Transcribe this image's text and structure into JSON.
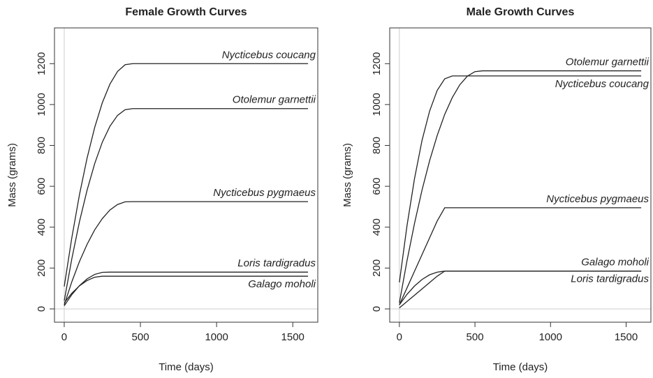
{
  "chart_data": [
    {
      "type": "line",
      "title": "Female Growth Curves",
      "x_label": "Time (days)",
      "y_label": "Mass (grams)",
      "x": [
        0,
        50,
        100,
        150,
        200,
        250,
        300,
        350,
        400,
        450,
        1600
      ],
      "series": [
        {
          "name": "Nycticebus coucang",
          "color": "#222222",
          "values": [
            110,
            349,
            559,
            738,
            888,
            1009,
            1100,
            1162,
            1195,
            1200,
            1200
          ]
        },
        {
          "name": "Otolemur garnettii",
          "color": "#222222",
          "values": [
            40,
            246,
            427,
            581,
            711,
            816,
            894,
            947,
            975,
            980,
            980
          ]
        },
        {
          "name": "Nycticebus pygmaeus",
          "color": "#222222",
          "values": [
            20,
            133,
            232,
            316,
            387,
            442,
            484,
            511,
            524,
            525,
            525
          ]
        },
        {
          "name": "Loris tardigradus",
          "color": "#222222",
          "values": [
            15,
            70,
            114,
            147,
            169,
            179,
            180,
            180,
            180,
            180,
            180
          ]
        },
        {
          "name": "Galago moholi",
          "color": "#222222",
          "values": [
            30,
            77,
            113,
            139,
            155,
            160,
            160,
            160,
            160,
            160,
            160
          ]
        }
      ],
      "xlim": [
        -64,
        1664
      ],
      "ylim": [
        -65,
        1375
      ],
      "xticks": [
        0,
        500,
        1000,
        1500
      ],
      "yticks": [
        0,
        200,
        400,
        600,
        800,
        1000,
        1200
      ]
    },
    {
      "type": "line",
      "title": "Male Growth Curves",
      "x_label": "Time (days)",
      "y_label": "Mass (grams)",
      "x": [
        0,
        50,
        100,
        150,
        200,
        250,
        300,
        350,
        400,
        450,
        500,
        550,
        1600
      ],
      "series": [
        {
          "name": "Otolemur garnettii",
          "color": "#222222",
          "values": [
            30,
            234,
            418,
            582,
            725,
            848,
            952,
            1034,
            1097,
            1139,
            1161,
            1165,
            1165
          ]
        },
        {
          "name": "Nycticebus coucang",
          "color": "#222222",
          "values": [
            130,
            405,
            637,
            825,
            968,
            1069,
            1126,
            1140,
            1140,
            1140,
            1140,
            1140,
            1140
          ]
        },
        {
          "name": "Nycticebus pygmaeus",
          "color": "#222222",
          "values": [
            20,
            102,
            184,
            266,
            348,
            430,
            495,
            495,
            495,
            495,
            495,
            495,
            495
          ]
        },
        {
          "name": "Galago moholi",
          "color": "#222222",
          "values": [
            20,
            71,
            112,
            144,
            167,
            180,
            185,
            185,
            185,
            185,
            185,
            185,
            185
          ]
        },
        {
          "name": "Loris tardigradus",
          "color": "#222222",
          "values": [
            5,
            36,
            67,
            98,
            129,
            160,
            185,
            185,
            185,
            185,
            185,
            185,
            185
          ]
        }
      ],
      "xlim": [
        -64,
        1664
      ],
      "ylim": [
        -65,
        1375
      ],
      "xticks": [
        0,
        500,
        1000,
        1500
      ],
      "yticks": [
        0,
        200,
        400,
        600,
        800,
        1000,
        1200
      ]
    }
  ]
}
